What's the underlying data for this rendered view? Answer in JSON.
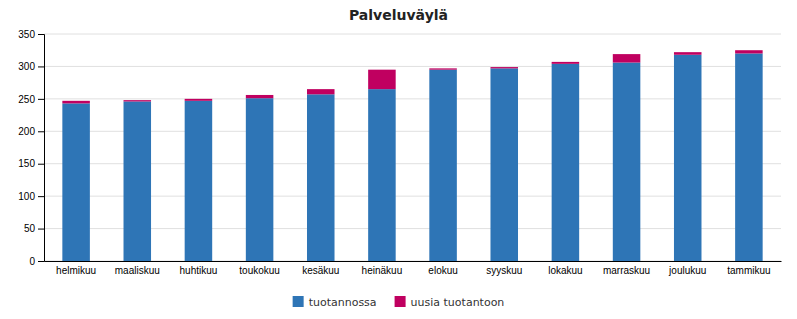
{
  "chart_data": {
    "type": "bar",
    "stacked": true,
    "title": "Palveluväylä",
    "categories": [
      "helmikuu",
      "maaliskuu",
      "huhtikuu",
      "toukokuu",
      "kesäkuu",
      "heinäkuu",
      "elokuu",
      "syyskuu",
      "lokakuu",
      "marraskuu",
      "joulukuu",
      "tammikuu"
    ],
    "series": [
      {
        "name": "tuotannossa",
        "color": "#2E75B6",
        "values": [
          243,
          246,
          247,
          251,
          257,
          265,
          295,
          297,
          304,
          306,
          318,
          320
        ]
      },
      {
        "name": "uusia tuotantoon",
        "color": "#C00060",
        "values": [
          4,
          2,
          3,
          5,
          8,
          30,
          2,
          2,
          3,
          13,
          4,
          5
        ]
      }
    ],
    "ylim": [
      0,
      350
    ],
    "yticks": [
      0,
      50,
      100,
      150,
      200,
      250,
      300,
      350
    ],
    "grid": true,
    "legend": "bottom"
  }
}
